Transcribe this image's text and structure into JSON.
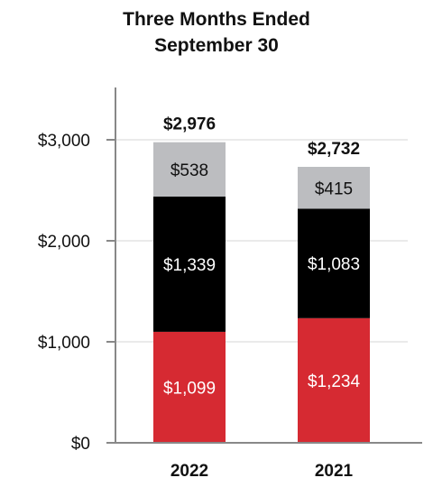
{
  "chart_data": {
    "type": "bar",
    "stacked": true,
    "title": [
      "Three Months Ended",
      "September 30"
    ],
    "categories": [
      "2022",
      "2021"
    ],
    "series": [
      {
        "values": [
          1099,
          1234
        ],
        "labels": [
          "$1,099",
          "$1,234"
        ],
        "color": "#d62a32",
        "label_color": "#ffffff"
      },
      {
        "values": [
          1339,
          1083
        ],
        "labels": [
          "$1,339",
          "$1,083"
        ],
        "color": "#000000",
        "label_color": "#ffffff"
      },
      {
        "values": [
          538,
          415
        ],
        "labels": [
          "$538",
          "$415"
        ],
        "color": "#bcbdc0",
        "label_color": "#111111"
      }
    ],
    "totals": [
      "$2,976",
      "$2,732"
    ],
    "yticks": [
      0,
      1000,
      2000,
      3000
    ],
    "ytick_labels": [
      "$0",
      "$1,000",
      "$2,000",
      "$3,000"
    ],
    "ylim": [
      0,
      3000
    ],
    "grid": true,
    "xlabel": "",
    "ylabel": ""
  }
}
